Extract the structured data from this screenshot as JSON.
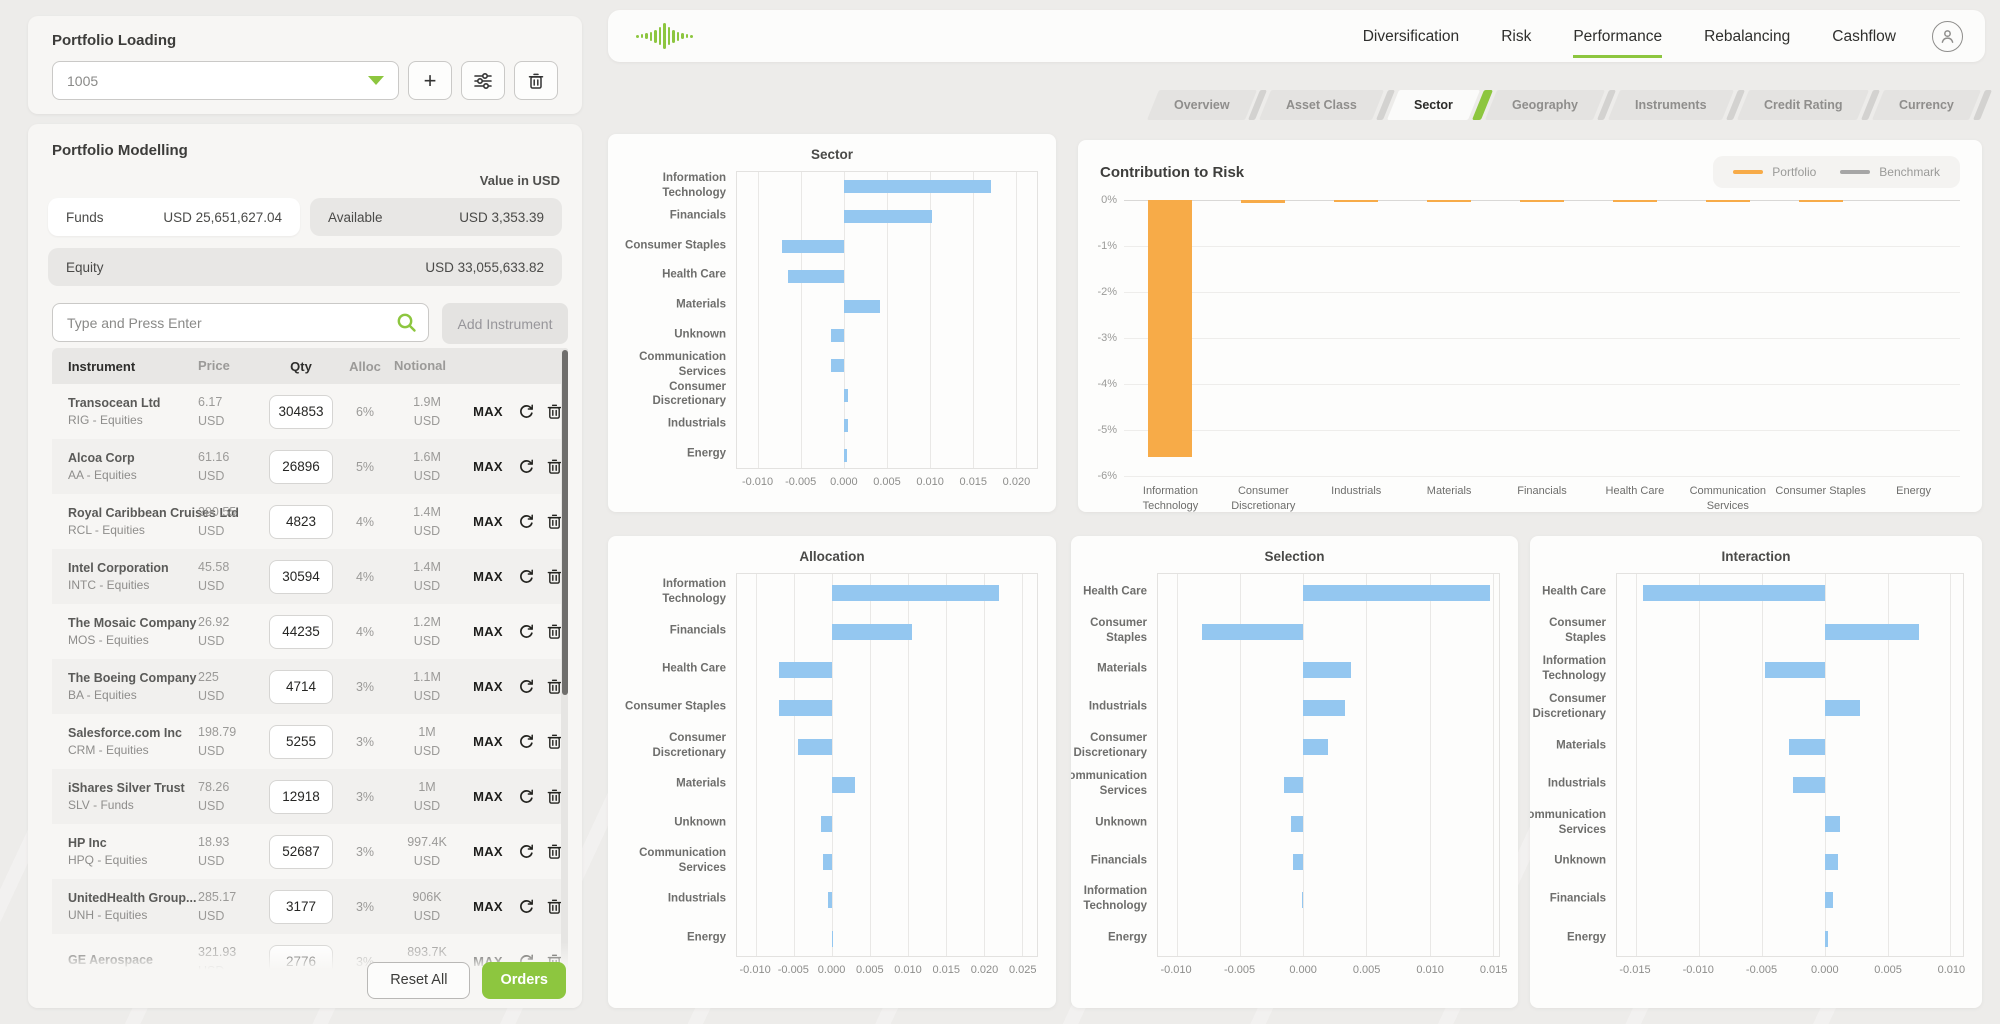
{
  "colors": {
    "accent": "#8dc63f",
    "bar_blue": "#94c7f0",
    "portfolio_orange": "#f7ab48",
    "benchmark_gray": "#a6a6a6"
  },
  "icons": {
    "dropdown": "chevron-down-icon",
    "add": "plus-icon",
    "filter": "sliders-icon",
    "delete": "trash-icon",
    "search": "search-icon",
    "refresh": "refresh-icon",
    "user": "user-icon",
    "logo": "soundwave-logo"
  },
  "portfolio_loading": {
    "title": "Portfolio Loading",
    "selected_portfolio": "1005"
  },
  "portfolio_modelling": {
    "title": "Portfolio Modelling",
    "value_in": "Value in USD",
    "funds_label": "Funds",
    "funds_value": "USD 25,651,627.04",
    "available_label": "Available",
    "available_value": "USD 3,353.39",
    "equity_label": "Equity",
    "equity_value": "USD 33,055,633.82",
    "search_placeholder": "Type and Press Enter",
    "add_instrument_label": "Add Instrument",
    "reset_label": "Reset All",
    "orders_label": "Orders",
    "table": {
      "headers": [
        "Instrument",
        "Price",
        "Qty",
        "Alloc",
        "Notional"
      ],
      "max_label": "MAX",
      "rows": [
        {
          "name": "Transocean Ltd",
          "ticker": "RIG - Equities",
          "price": "6.17",
          "currency": "USD",
          "qty": "304853",
          "alloc": "6%",
          "notional": "1.9M"
        },
        {
          "name": "Alcoa Corp",
          "ticker": "AA - Equities",
          "price": "61.16",
          "currency": "USD",
          "qty": "26896",
          "alloc": "5%",
          "notional": "1.6M"
        },
        {
          "name": "Royal Caribbean Cruises Ltd",
          "ticker": "RCL - Equities",
          "price": "290.55",
          "currency": "USD",
          "qty": "4823",
          "alloc": "4%",
          "notional": "1.4M"
        },
        {
          "name": "Intel Corporation",
          "ticker": "INTC - Equities",
          "price": "45.58",
          "currency": "USD",
          "qty": "30594",
          "alloc": "4%",
          "notional": "1.4M"
        },
        {
          "name": "The Mosaic Company",
          "ticker": "MOS - Equities",
          "price": "26.92",
          "currency": "USD",
          "qty": "44235",
          "alloc": "4%",
          "notional": "1.2M"
        },
        {
          "name": "The Boeing Company",
          "ticker": "BA - Equities",
          "price": "225",
          "currency": "USD",
          "qty": "4714",
          "alloc": "3%",
          "notional": "1.1M"
        },
        {
          "name": "Salesforce.com Inc",
          "ticker": "CRM - Equities",
          "price": "198.79",
          "currency": "USD",
          "qty": "5255",
          "alloc": "3%",
          "notional": "1M"
        },
        {
          "name": "iShares Silver Trust",
          "ticker": "SLV - Funds",
          "price": "78.26",
          "currency": "USD",
          "qty": "12918",
          "alloc": "3%",
          "notional": "1M"
        },
        {
          "name": "HP Inc",
          "ticker": "HPQ - Equities",
          "price": "18.93",
          "currency": "USD",
          "qty": "52687",
          "alloc": "3%",
          "notional": "997.4K"
        },
        {
          "name": "UnitedHealth Group...",
          "ticker": "UNH - Equities",
          "price": "285.17",
          "currency": "USD",
          "qty": "3177",
          "alloc": "3%",
          "notional": "906K"
        },
        {
          "name": "GE Aerospace",
          "ticker": "",
          "price": "321.93",
          "currency": "USD",
          "qty": "2776",
          "alloc": "3%",
          "notional": "893.7K"
        }
      ]
    }
  },
  "header": {
    "nav": [
      "Diversification",
      "Risk",
      "Performance",
      "Rebalancing",
      "Cashflow"
    ],
    "active_nav": "Performance"
  },
  "tabs": {
    "items": [
      "Overview",
      "Asset Class",
      "Sector",
      "Geography",
      "Instruments",
      "Credit Rating",
      "Currency"
    ],
    "active": "Sector"
  },
  "chart_data": [
    {
      "type": "bar",
      "orientation": "horizontal",
      "title": "Sector",
      "grid": true,
      "categories": [
        "Information Technology",
        "Financials",
        "Consumer Staples",
        "Health Care",
        "Materials",
        "Unknown",
        "Communication Services",
        "Consumer Discretionary",
        "Industrials",
        "Energy"
      ],
      "values": [
        0.0171,
        0.0103,
        -0.0073,
        -0.0065,
        0.0042,
        -0.0015,
        -0.0015,
        0.0005,
        0.0004,
        0.0003
      ],
      "xlim": [
        -0.0125,
        0.0225
      ],
      "xticks": [
        "-0.010",
        "-0.005",
        "0.000",
        "0.005",
        "0.010",
        "0.015",
        "0.020"
      ]
    },
    {
      "type": "bar",
      "orientation": "vertical",
      "title": "Contribution to Risk",
      "grid": true,
      "legend_position": "top-right",
      "categories": [
        "Information Technology",
        "Consumer Discretionary",
        "Industrials",
        "Materials",
        "Financials",
        "Health Care",
        "Communication Services",
        "Consumer Staples",
        "Energy"
      ],
      "series": [
        {
          "name": "Portfolio",
          "color": "#f7ab48",
          "values": [
            -5.58,
            -0.07,
            -0.03,
            -0.03,
            -0.03,
            -0.03,
            -0.03,
            -0.03,
            0
          ]
        },
        {
          "name": "Benchmark",
          "color": "#a6a6a6",
          "values": [
            0,
            0,
            0,
            0,
            0,
            0,
            0,
            0,
            0
          ]
        }
      ],
      "ylim": [
        0,
        -6
      ],
      "yticks": [
        0,
        -1,
        -2,
        -3,
        -4,
        -5,
        -6
      ],
      "ytick_suffix": "%"
    },
    {
      "type": "bar",
      "orientation": "horizontal",
      "title": "Allocation",
      "grid": true,
      "categories": [
        "Information Technology",
        "Financials",
        "Health Care",
        "Consumer Staples",
        "Consumer Discretionary",
        "Materials",
        "Unknown",
        "Communication Services",
        "Industrials",
        "Energy"
      ],
      "values": [
        0.022,
        0.0105,
        -0.007,
        -0.007,
        -0.0045,
        0.003,
        -0.0015,
        -0.0012,
        -0.0005,
        0.0001
      ],
      "xlim": [
        -0.0125,
        0.027
      ],
      "xticks": [
        "-0.010",
        "-0.005",
        "0.000",
        "0.005",
        "0.010",
        "0.015",
        "0.020",
        "0.025"
      ]
    },
    {
      "type": "bar",
      "orientation": "horizontal",
      "title": "Selection",
      "grid": true,
      "categories": [
        "Health Care",
        "Consumer Staples",
        "Materials",
        "Industrials",
        "Consumer Discretionary",
        "Communication Services",
        "Unknown",
        "Financials",
        "Information Technology",
        "Energy"
      ],
      "values": [
        0.0148,
        -0.008,
        0.0038,
        0.0033,
        0.002,
        -0.0015,
        -0.001,
        -0.0008,
        -0.0001,
        0
      ],
      "xlim": [
        -0.0115,
        0.0155
      ],
      "xticks": [
        "-0.010",
        "-0.005",
        "0.000",
        "0.005",
        "0.010",
        "0.015"
      ]
    },
    {
      "type": "bar",
      "orientation": "horizontal",
      "title": "Interaction",
      "grid": true,
      "categories": [
        "Health Care",
        "Consumer Staples",
        "Information Technology",
        "Consumer Discretionary",
        "Materials",
        "Industrials",
        "Communication Services",
        "Unknown",
        "Financials",
        "Energy"
      ],
      "values": [
        -0.0144,
        0.0075,
        -0.0047,
        0.0028,
        -0.0028,
        -0.0025,
        0.0012,
        0.0011,
        0.0007,
        0.0003
      ],
      "xlim": [
        -0.0165,
        0.011
      ],
      "xticks": [
        "-0.015",
        "-0.010",
        "-0.005",
        "0.000",
        "0.005",
        "0.010"
      ]
    }
  ]
}
